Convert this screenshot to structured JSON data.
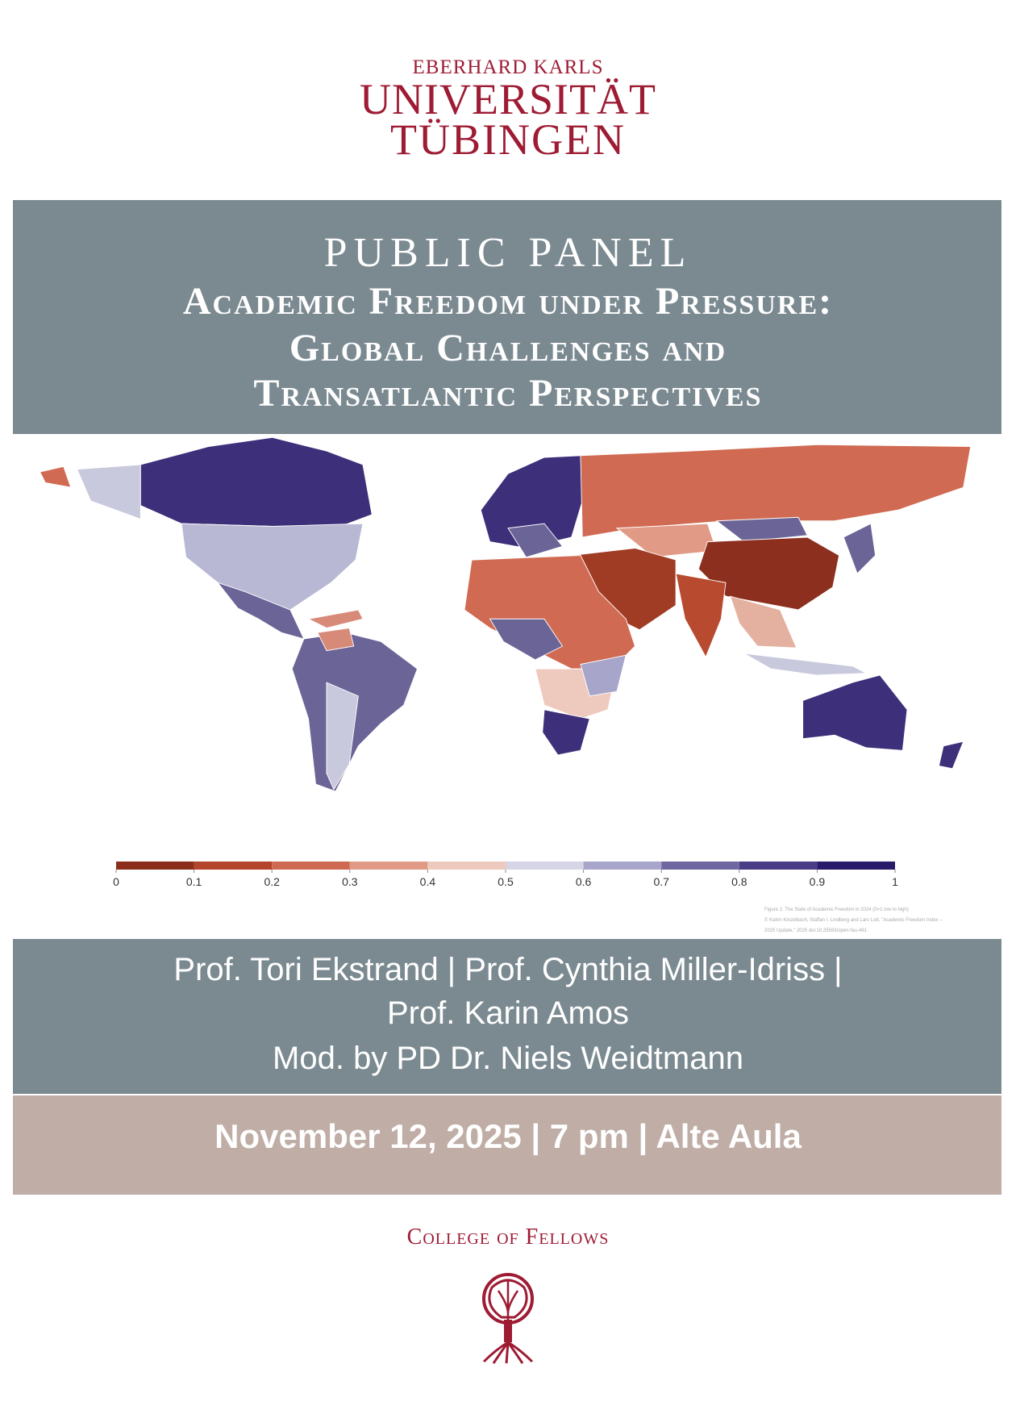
{
  "header": {
    "line1": "EBERHARD KARLS",
    "line2": "UNIVERSITÄT",
    "line3": "TÜBINGEN"
  },
  "panel": {
    "kicker": "PUBLIC PANEL",
    "title_lines": [
      "Academic Freedom under Pressure:",
      "Global Challenges and",
      "Transatlantic Perspectives"
    ]
  },
  "map": {
    "legend": {
      "ticks": [
        0,
        0.1,
        0.2,
        0.3,
        0.4,
        0.5,
        0.6,
        0.7,
        0.8,
        0.9,
        1
      ],
      "colors": [
        "#8b2e1a",
        "#b2452c",
        "#cf6a52",
        "#e09a85",
        "#eecabe",
        "#d5d5e6",
        "#a7a5c9",
        "#6f68a0",
        "#4a3d86",
        "#2a1a6a"
      ]
    },
    "caption": [
      "Figure 1: The State of Academic Freedom in 2024 (0=1 low to high)",
      "© Katrin Kinzelbach, Staffan I. Lindberg and Lars Lott, \"Academic Freedom Index –",
      "2025 Update,\" 2025 doi:10.25593/open-fau-491"
    ]
  },
  "speakers": [
    "Prof. Tori Ekstrand | Prof. Cynthia Miller-Idriss |",
    "Prof. Karin Amos",
    "Mod. by PD Dr. Niels Weidtmann"
  ],
  "event": {
    "details": "November 12, 2025 | 7 pm | Alte Aula"
  },
  "footer": {
    "label": "College of Fellows"
  }
}
